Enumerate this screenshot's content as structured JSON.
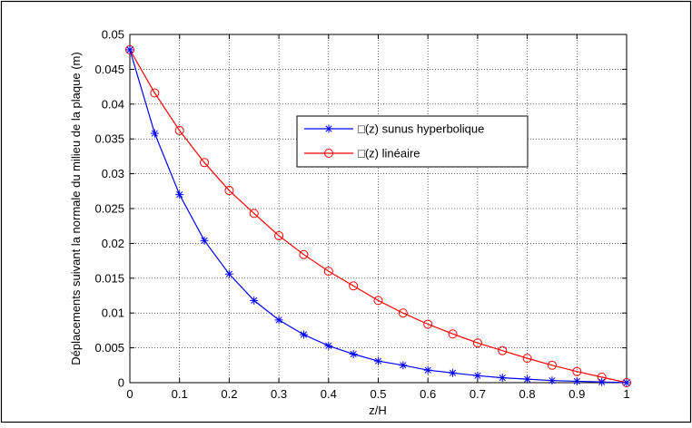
{
  "chart_data": {
    "type": "line",
    "title": "",
    "xlabel": "z/H",
    "ylabel": "Déplacements suivant la normale du milieu de la plaque (m)",
    "xlim": [
      0,
      1
    ],
    "ylim": [
      0,
      0.05
    ],
    "xticks": [
      "0",
      "0.1",
      "0.2",
      "0.3",
      "0.4",
      "0.5",
      "0.6",
      "0.7",
      "0.8",
      "0.9",
      "1"
    ],
    "yticks": [
      "0",
      "0.005",
      "0.01",
      "0.015",
      "0.02",
      "0.025",
      "0.03",
      "0.035",
      "0.04",
      "0.045",
      "0.05"
    ],
    "grid": true,
    "legend_position": "upper-center",
    "x": [
      0,
      0.05,
      0.1,
      0.15,
      0.2,
      0.25,
      0.3,
      0.35,
      0.4,
      0.45,
      0.5,
      0.55,
      0.6,
      0.65,
      0.7,
      0.75,
      0.8,
      0.85,
      0.9,
      0.95,
      1
    ],
    "series": [
      {
        "name": "□(z) sunus hyperbolique",
        "color": "#0000ff",
        "marker": "asterisk",
        "values": [
          0.0478,
          0.0358,
          0.027,
          0.0204,
          0.0156,
          0.0118,
          0.009,
          0.0069,
          0.0053,
          0.0041,
          0.0031,
          0.0025,
          0.0018,
          0.0014,
          0.001,
          0.0007,
          0.0005,
          0.0003,
          0.0002,
          0.0001,
          0.0
        ]
      },
      {
        "name": "□(z) linéaire",
        "color": "#ff0000",
        "marker": "circle",
        "values": [
          0.0478,
          0.0416,
          0.0362,
          0.0316,
          0.0276,
          0.0243,
          0.0211,
          0.0184,
          0.016,
          0.0139,
          0.0118,
          0.01,
          0.0084,
          0.007,
          0.0057,
          0.0046,
          0.0035,
          0.0025,
          0.0016,
          0.0008,
          0.0
        ]
      }
    ]
  }
}
